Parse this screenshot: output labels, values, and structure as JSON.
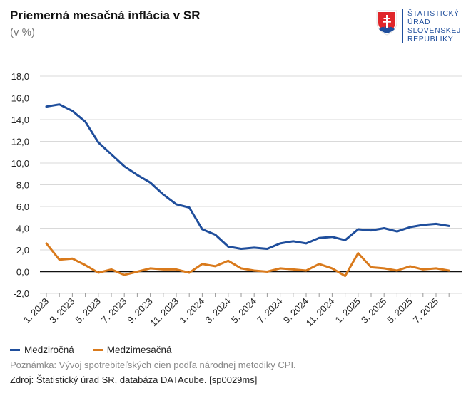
{
  "header": {
    "title": "Priemerná mesačná inflácia v SR",
    "subtitle": "(v %)"
  },
  "logo": {
    "lines": [
      "ŠTATISTICKÝ",
      "ÚRAD",
      "SLOVENSKEJ",
      "REPUBLIKY"
    ],
    "icon": "slovak-coat-of-arms-icon"
  },
  "colors": {
    "series1": "#1f4e9c",
    "series2": "#d97a1c",
    "grid": "#d9d9d9",
    "zero": "#111111"
  },
  "footer": {
    "note": "Poznámka: Vývoj spotrebiteľských cien podľa národnej metodiky CPI.",
    "source": "Zdroj: Štatistický úrad SR, databáza DATAcube. [sp0029ms]"
  },
  "chart_data": {
    "type": "line",
    "title": "Priemerná mesačná inflácia v SR",
    "subtitle": "(v %)",
    "xlabel": "",
    "ylabel": "",
    "ylim": [
      -2,
      18
    ],
    "yticks": [
      "-2,0",
      "0,0",
      "2,0",
      "4,0",
      "6,0",
      "8,0",
      "10,0",
      "12,0",
      "14,0",
      "16,0",
      "18,0"
    ],
    "grid": true,
    "legend": "bottom-left",
    "x": [
      "1. 2023",
      "2. 2023",
      "3. 2023",
      "4. 2023",
      "5. 2023",
      "6. 2023",
      "7. 2023",
      "8. 2023",
      "9. 2023",
      "10. 2023",
      "11. 2023",
      "12. 2023",
      "1. 2024",
      "2. 2024",
      "3. 2024",
      "4. 2024",
      "5. 2024",
      "6. 2024",
      "7. 2024",
      "8. 2024",
      "9. 2024",
      "10. 2024",
      "11. 2024",
      "12. 2024",
      "1. 2025",
      "2. 2025",
      "3. 2025",
      "4. 2025",
      "5. 2025",
      "6. 2025",
      "7. 2025",
      "8. 2025"
    ],
    "xtick_labels": [
      "1. 2023",
      "3. 2023",
      "5. 2023",
      "7. 2023",
      "9. 2023",
      "11. 2023",
      "1. 2024",
      "3. 2024",
      "5. 2024",
      "7. 2024",
      "9. 2024",
      "11. 2024",
      "1. 2025",
      "3. 2025",
      "5. 2025",
      "7. 2025"
    ],
    "series": [
      {
        "name": "Medziročná",
        "values": [
          15.2,
          15.4,
          14.8,
          13.8,
          11.9,
          10.8,
          9.7,
          8.9,
          8.2,
          7.1,
          6.2,
          5.9,
          3.9,
          3.4,
          2.3,
          2.1,
          2.2,
          2.1,
          2.6,
          2.8,
          2.6,
          3.1,
          3.2,
          2.9,
          3.9,
          3.8,
          4.0,
          3.7,
          4.1,
          4.3,
          4.4,
          4.2
        ]
      },
      {
        "name": "Medzimesačná",
        "values": [
          2.6,
          1.1,
          1.2,
          0.6,
          -0.1,
          0.2,
          -0.3,
          0.0,
          0.3,
          0.2,
          0.2,
          -0.1,
          0.7,
          0.5,
          1.0,
          0.3,
          0.1,
          0.0,
          0.3,
          0.2,
          0.1,
          0.7,
          0.3,
          -0.4,
          1.7,
          0.4,
          0.3,
          0.1,
          0.5,
          0.2,
          0.3,
          0.1
        ]
      }
    ]
  }
}
